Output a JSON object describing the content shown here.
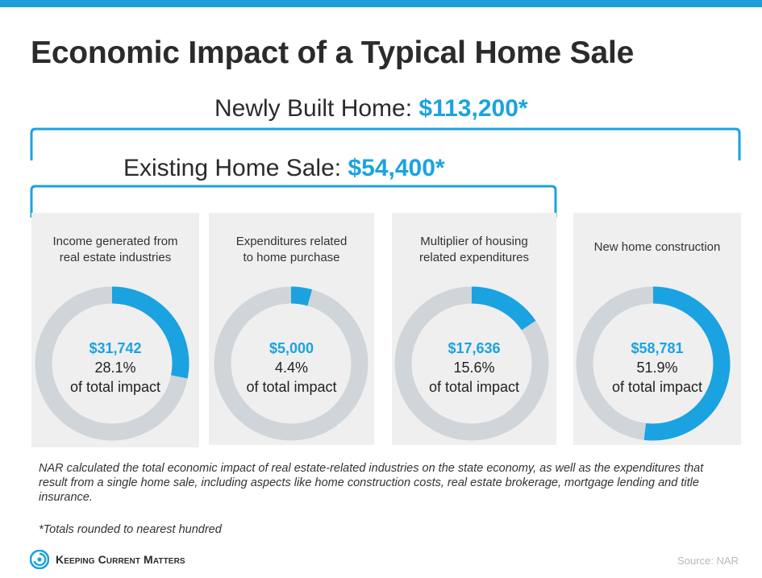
{
  "title": "Economic Impact of a Typical Home Sale",
  "newly_built": {
    "label": "Newly Built Home: ",
    "amount": "$113,200*"
  },
  "existing_sale": {
    "label": "Existing Home Sale: ",
    "amount": "$54,400*"
  },
  "panels": [
    {
      "label_line1": "Income generated from",
      "label_line2": "real estate industries",
      "value": "$31,742",
      "percent": "28.1%",
      "caption": "of total impact"
    },
    {
      "label_line1": "Expenditures related",
      "label_line2": "to home purchase",
      "value": "$5,000",
      "percent": "4.4%",
      "caption": "of total impact"
    },
    {
      "label_line1": "Multiplier of housing",
      "label_line2": "related expenditures",
      "value": "$17,636",
      "percent": "15.6%",
      "caption": "of total impact"
    },
    {
      "label_line1": "New home construction",
      "label_line2": "",
      "value": "$58,781",
      "percent": "51.9%",
      "caption": "of total impact"
    }
  ],
  "notes": "NAR calculated the total economic impact of real estate-related industries on the state economy, as well as the expenditures that result from a single home sale, including aspects like home construction costs, real estate brokerage, mortgage lending and title insurance.",
  "footnote": "*Totals rounded to nearest hundred",
  "logo_text": "Keeping Current Matters",
  "source": "Source: NAR",
  "colors": {
    "accent": "#1aa3e0",
    "track": "#cfd5d8",
    "panel": "#efefef",
    "top_bar": "#1e9fd9"
  },
  "chart_data": {
    "type": "pie",
    "title": "Economic Impact of a Typical Home Sale",
    "categories": [
      "Income generated from real estate industries",
      "Expenditures related to home purchase",
      "Multiplier of housing related expenditures",
      "New home construction"
    ],
    "values": [
      31742,
      5000,
      17636,
      58781
    ],
    "percent_of_total": [
      28.1,
      4.4,
      15.6,
      51.9
    ],
    "totals": {
      "newly_built_home": 113200,
      "existing_home_sale": 54400
    }
  }
}
